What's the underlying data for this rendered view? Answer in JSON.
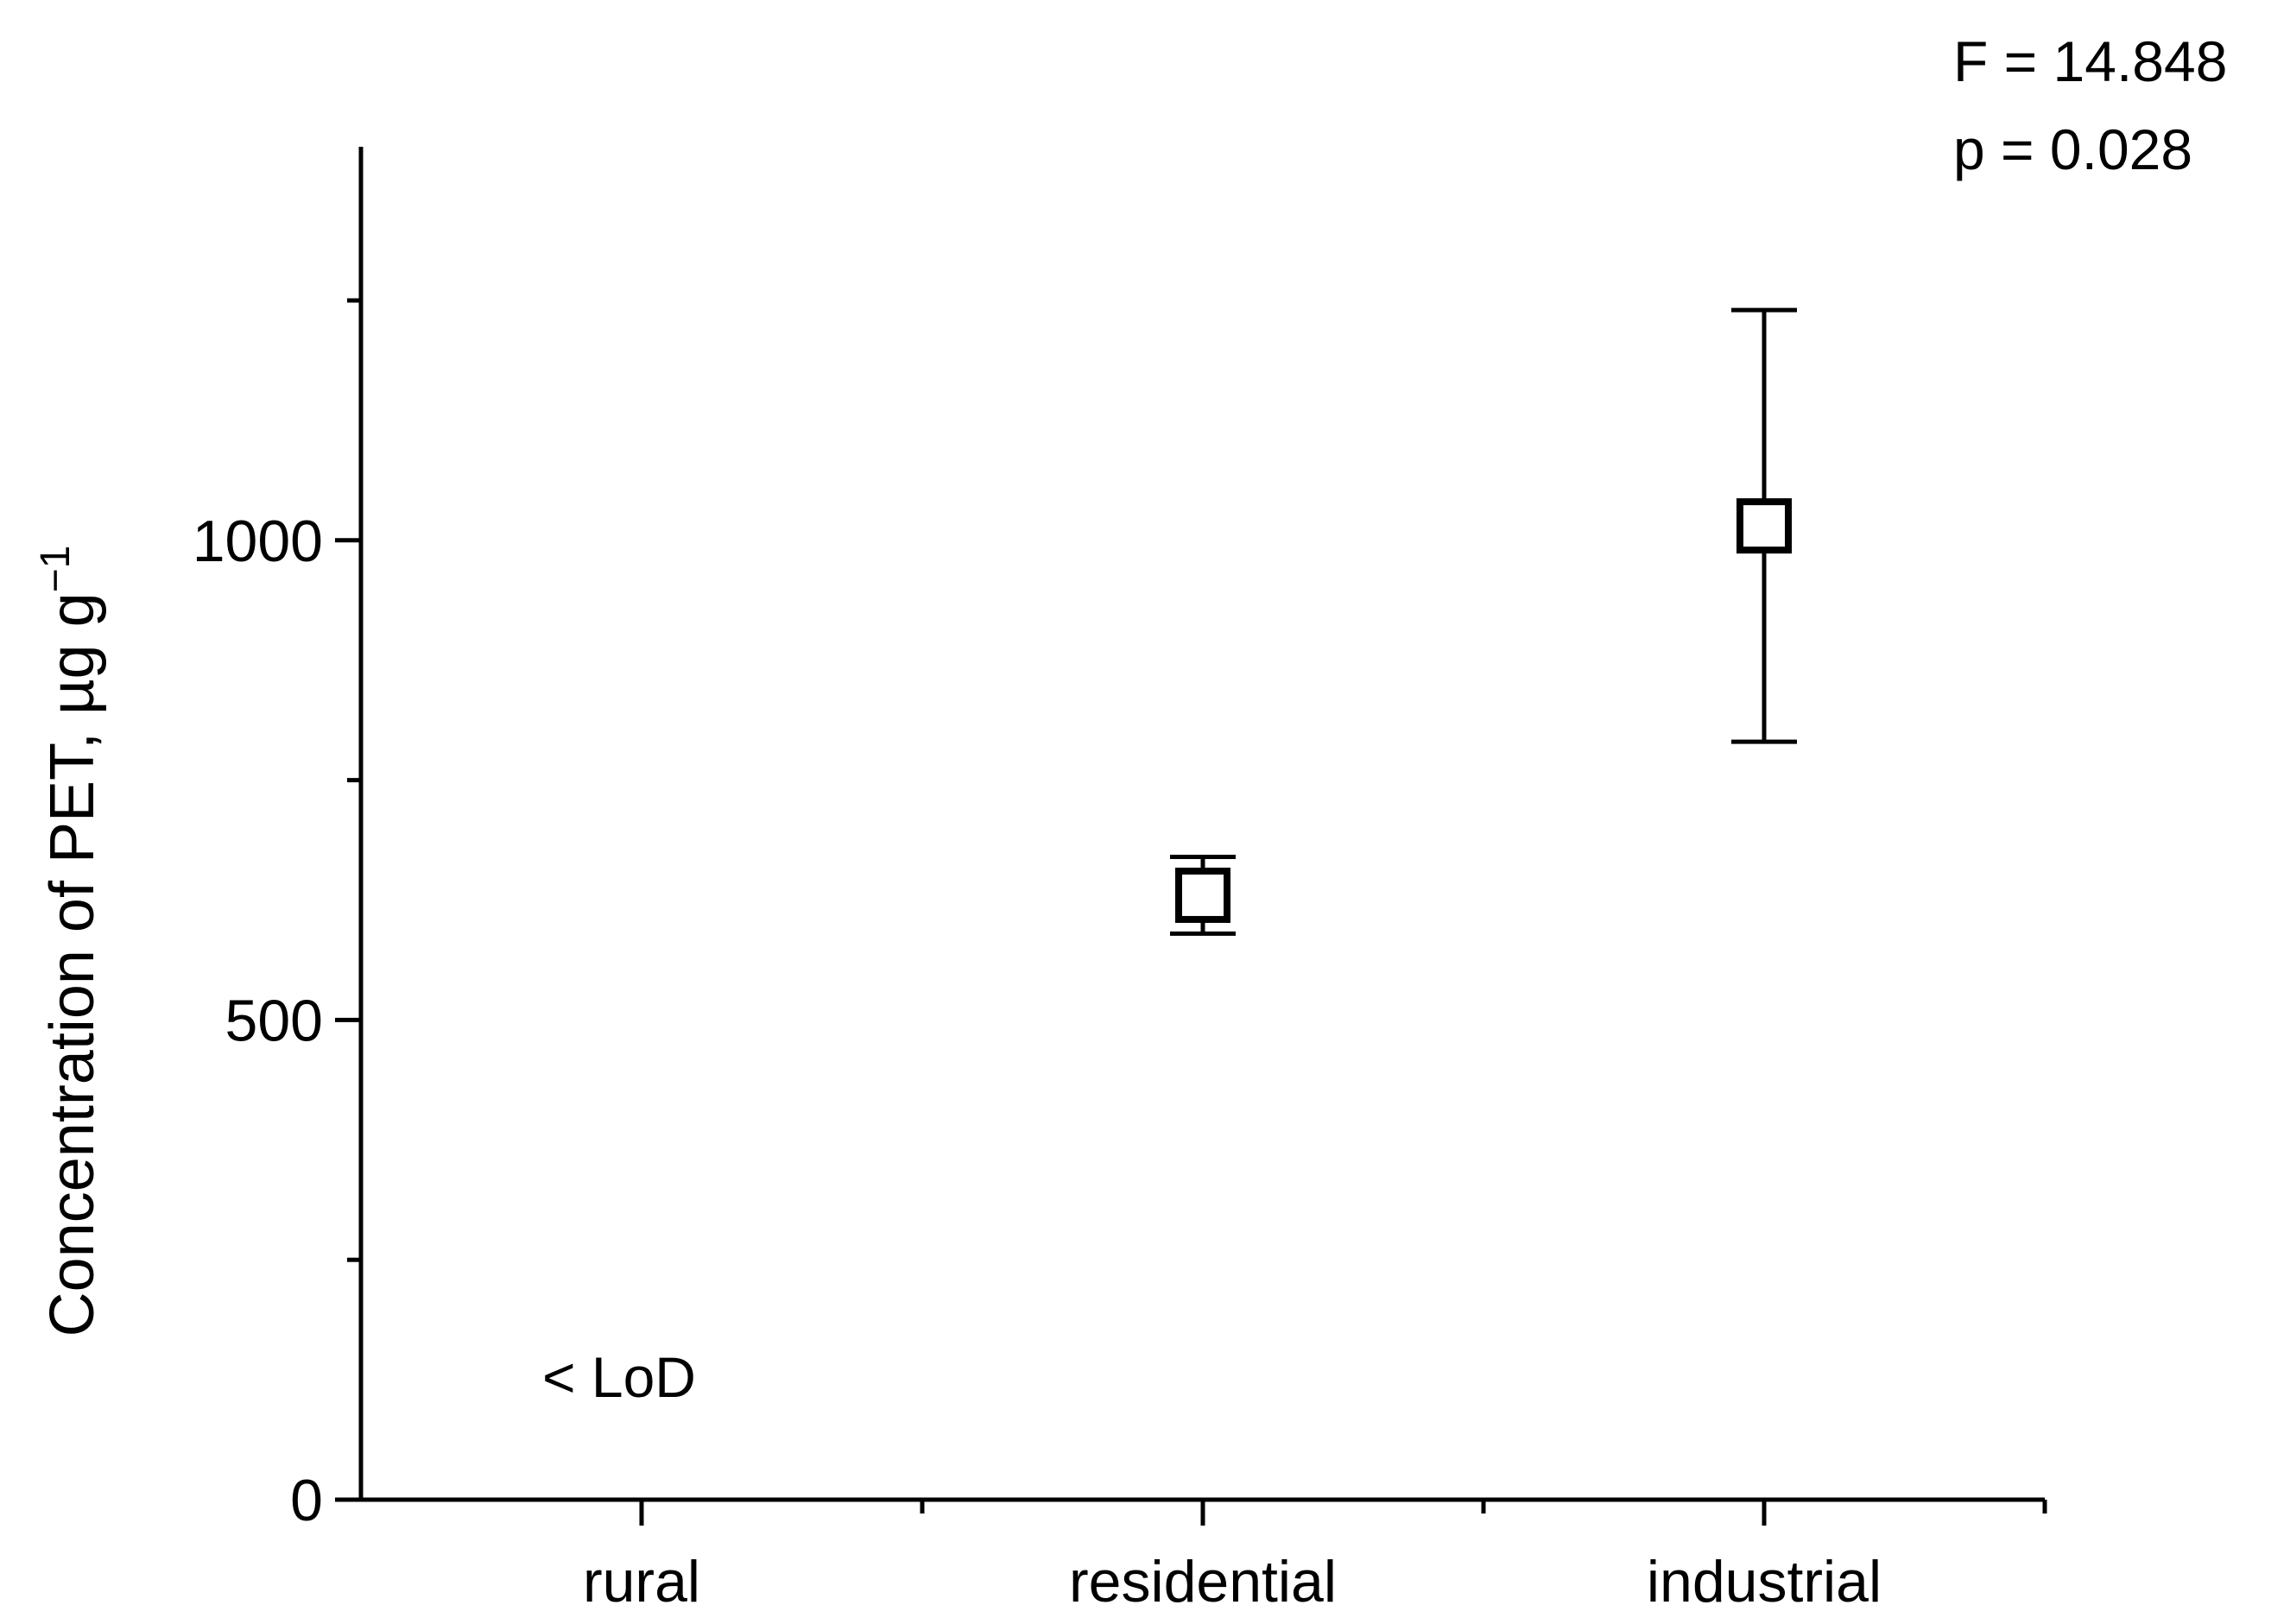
{
  "chart_data": {
    "type": "scatter",
    "categories": [
      "rural",
      "residential",
      "industrial"
    ],
    "series": [
      {
        "marker": "open-square",
        "points": [
          {
            "category": "residential",
            "y": 630,
            "err_low": 590,
            "err_high": 670
          },
          {
            "category": "industrial",
            "y": 1015,
            "err_low": 790,
            "err_high": 1240
          }
        ]
      }
    ],
    "ylabel": "Concentration of PET, µg g",
    "ylabel_superscript": "−1",
    "ylim": [
      0,
      1250
    ],
    "yticks_major": [
      0,
      500,
      1000
    ],
    "yticks_major_labels": [
      "0",
      "500",
      "1000"
    ],
    "yticks_minor": [
      250,
      750,
      1250
    ],
    "annotations": {
      "lod": "< LoD",
      "f_stat": "F = 14.848",
      "p_value": "p = 0.028"
    },
    "grid": false,
    "legend": "none"
  }
}
